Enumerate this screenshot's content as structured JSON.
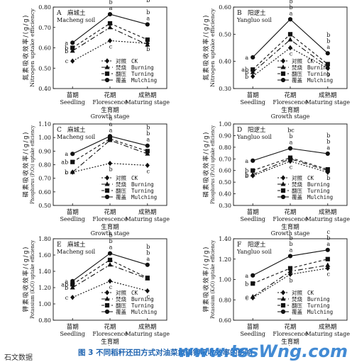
{
  "caption": "图 3   不同稻秆还田方式对油菜氮磷钾吸收效率的影响",
  "watermark": "www.tssWng.com",
  "corner_text": "石文数据",
  "legend": [
    {
      "cn": "对照",
      "en": "CK"
    },
    {
      "cn": "焚烧",
      "en": "Burning"
    },
    {
      "cn": "翻压",
      "en": "Turning"
    },
    {
      "cn": "覆盖",
      "en": "Mulching"
    }
  ],
  "series_styles": {
    "CK": {
      "marker": "diamond",
      "dash": "2,2"
    },
    "Burning": {
      "marker": "triangle",
      "dash": "7,3,2,3"
    },
    "Turning": {
      "marker": "square",
      "dash": "4,3"
    },
    "Mulching": {
      "marker": "circle",
      "dash": ""
    }
  },
  "chart_data": [
    {
      "type": "line",
      "panel": "A",
      "site_cn": "麻城土",
      "site_en": "Macheng soil",
      "ylabel_cn": "氮素吸收效率/(g/g)",
      "ylabel_en": "Nitrogen uptake efficiency",
      "xlabel_cn": "生育期",
      "xlabel_en": "Growth stage",
      "categories_cn": [
        "苗期",
        "花期",
        "成熟期"
      ],
      "categories_en": [
        "Seedling",
        "Florescence",
        "Maturing stage"
      ],
      "ylim": [
        0.4,
        0.8
      ],
      "yticks": [
        "0.40",
        "0.50",
        "0.60",
        "0.70",
        "0.80"
      ],
      "series": [
        {
          "name": "CK",
          "values": [
            0.535,
            0.635,
            0.622
          ],
          "letters": [
            "c",
            "c",
            "b"
          ]
        },
        {
          "name": "Burning",
          "values": [
            0.585,
            0.7,
            0.615
          ],
          "letters": [
            "b",
            "b",
            "b"
          ]
        },
        {
          "name": "Turning",
          "values": [
            0.6,
            0.72,
            0.64
          ],
          "letters": [
            "b",
            "b",
            "b"
          ]
        },
        {
          "name": "Mulching",
          "values": [
            0.625,
            0.765,
            0.715
          ],
          "letters": [
            "a",
            "a",
            "a"
          ]
        }
      ]
    },
    {
      "type": "line",
      "panel": "B",
      "site_cn": "阳逻土",
      "site_en": "Yangluo soil",
      "ylabel_cn": "氮素吸收效率/(g/g)",
      "ylabel_en": "Nitrogen uptake efficiency",
      "xlabel_cn": "生育期",
      "xlabel_en": "Growth stage",
      "categories_cn": [
        "苗期",
        "花期",
        "成熟期"
      ],
      "categories_en": [
        "Seedling",
        "Florescence",
        "Maturing stage"
      ],
      "ylim": [
        0.3,
        0.6
      ],
      "yticks": [
        "0.30",
        "0.40",
        "0.50",
        "0.60"
      ],
      "series": [
        {
          "name": "CK",
          "values": [
            0.345,
            0.45,
            0.375
          ],
          "letters": [
            "b",
            "c",
            "b"
          ]
        },
        {
          "name": "Burning",
          "values": [
            0.36,
            0.48,
            0.38
          ],
          "letters": [
            "b",
            "b",
            "b"
          ]
        },
        {
          "name": "Turning",
          "values": [
            0.37,
            0.5,
            0.39
          ],
          "letters": [
            "ab",
            "b",
            "b"
          ]
        },
        {
          "name": "Mulching",
          "values": [
            0.415,
            0.555,
            0.43
          ],
          "letters": [
            "a",
            "a",
            "a"
          ]
        }
      ]
    },
    {
      "type": "line",
      "panel": "C",
      "site_cn": "麻城土",
      "site_en": "Macheng soil",
      "ylabel_cn": "磷素吸收效率/(g/g)",
      "ylabel_en": "Phosphorus (P₂O₅) uptake efficiency",
      "xlabel_cn": "生育期",
      "xlabel_en": "Growth stage",
      "categories_cn": [
        "苗期",
        "花期",
        "成熟期"
      ],
      "categories_en": [
        "Seedling",
        "Florescence",
        "Maturing stage"
      ],
      "ylim": [
        0.5,
        1.1
      ],
      "yticks": [
        "0.50",
        "0.60",
        "0.70",
        "0.80",
        "0.90",
        "1.00",
        "1.10"
      ],
      "series": [
        {
          "name": "CK",
          "values": [
            0.745,
            0.81,
            0.795
          ],
          "letters": [
            "c",
            "b",
            "c"
          ]
        },
        {
          "name": "Burning",
          "values": [
            0.745,
            0.98,
            0.88
          ],
          "letters": [
            "b",
            "a",
            "b"
          ]
        },
        {
          "name": "Turning",
          "values": [
            0.82,
            0.99,
            0.9
          ],
          "letters": [
            "ab",
            "a",
            "b"
          ]
        },
        {
          "name": "Mulching",
          "values": [
            0.88,
            1.01,
            0.94
          ],
          "letters": [
            "a",
            "a",
            "a"
          ]
        }
      ]
    },
    {
      "type": "line",
      "panel": "D",
      "site_cn": "阳逻土",
      "site_en": "Yangluo soil",
      "ylabel_cn": "磷素吸收效率/(g/g)",
      "ylabel_en": "Phosphorus (P₂O₅) uptake efficiency",
      "xlabel_cn": "生育期",
      "xlabel_en": "Growth stage",
      "categories_cn": [
        "苗期",
        "花期",
        "成熟期"
      ],
      "categories_en": [
        "Seedling",
        "Florescence",
        "Maturing stage"
      ],
      "ylim": [
        0.3,
        1.0
      ],
      "yticks": [
        "0.30",
        "0.40",
        "0.50",
        "0.60",
        "0.70",
        "0.80",
        "0.90",
        "1.00"
      ],
      "series": [
        {
          "name": "CK",
          "values": [
            0.555,
            0.68,
            0.585
          ],
          "letters": [
            "b",
            "c",
            "b"
          ]
        },
        {
          "name": "Burning",
          "values": [
            0.565,
            0.7,
            0.6
          ],
          "letters": [
            "b",
            "bc",
            "b"
          ]
        },
        {
          "name": "Turning",
          "values": [
            0.6,
            0.71,
            0.61
          ],
          "letters": [
            "b",
            "b",
            "b"
          ]
        },
        {
          "name": "Mulching",
          "values": [
            0.685,
            0.79,
            0.745
          ],
          "letters": [
            "a",
            "a",
            "a"
          ]
        }
      ]
    },
    {
      "type": "line",
      "panel": "E",
      "site_cn": "麻城土",
      "site_en": "Macheng soil",
      "ylabel_cn": "钾素吸收效率/(g/g)",
      "ylabel_en": "Potassium (K₂O) uptake efficiency",
      "xlabel_cn": "生育期",
      "xlabel_en": "Growth stage",
      "categories_cn": [
        "苗期",
        "花期",
        "成熟期"
      ],
      "categories_en": [
        "Seedling",
        "Florescence",
        "Maturing stage"
      ],
      "ylim": [
        0.8,
        1.8
      ],
      "yticks": [
        "0.80",
        "1.00",
        "1.20",
        "1.40",
        "1.60",
        "1.80"
      ],
      "series": [
        {
          "name": "CK",
          "values": [
            1.08,
            1.28,
            1.16
          ],
          "letters": [
            "c",
            "c",
            "c"
          ]
        },
        {
          "name": "Burning",
          "values": [
            1.2,
            1.48,
            1.31
          ],
          "letters": [
            "b",
            "b",
            "b"
          ]
        },
        {
          "name": "Turning",
          "values": [
            1.24,
            1.54,
            1.32
          ],
          "letters": [
            "ab",
            "b",
            "b"
          ]
        },
        {
          "name": "Mulching",
          "values": [
            1.28,
            1.62,
            1.48
          ],
          "letters": [
            "a",
            "a",
            "a"
          ]
        }
      ]
    },
    {
      "type": "line",
      "panel": "F",
      "site_cn": "阳逻土",
      "site_en": "Yangluo soil",
      "ylabel_cn": "钾素吸收效率/(g/g)",
      "ylabel_en": "Potassium (K₂O) uptake efficiency",
      "xlabel_cn": "生育期",
      "xlabel_en": "Growth stage",
      "categories_cn": [
        "苗期",
        "花期",
        "成熟期"
      ],
      "categories_en": [
        "Seedling",
        "Florescence",
        "Maturing stage"
      ],
      "ylim": [
        0.6,
        1.4
      ],
      "yticks": [
        "0.60",
        "0.80",
        "1.00",
        "1.20",
        "1.40"
      ],
      "series": [
        {
          "name": "CK",
          "values": [
            0.82,
            1.05,
            1.11
          ],
          "letters": [
            "c",
            "b",
            "c"
          ]
        },
        {
          "name": "Burning",
          "values": [
            0.83,
            1.08,
            1.14
          ],
          "letters": [
            "c",
            "b",
            "c"
          ]
        },
        {
          "name": "Turning",
          "values": [
            0.96,
            1.11,
            1.2
          ],
          "letters": [
            "b",
            "b",
            "b"
          ]
        },
        {
          "name": "Mulching",
          "values": [
            1.04,
            1.23,
            1.29
          ],
          "letters": [
            "a",
            "a",
            "a"
          ]
        }
      ]
    }
  ]
}
